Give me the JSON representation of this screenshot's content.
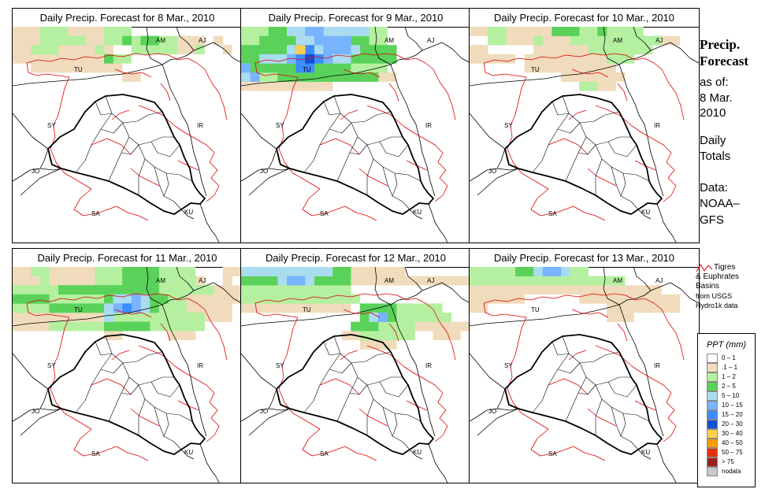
{
  "panels": [
    {
      "title": "Daily Precip. Forecast for  8 Mar., 2010",
      "key": "d8"
    },
    {
      "title": "Daily Precip. Forecast for  9 Mar., 2010",
      "key": "d9"
    },
    {
      "title": "Daily Precip. Forecast for  10 Mar., 2010",
      "key": "d10"
    },
    {
      "title": "Daily Precip. Forecast for  11 Mar., 2010",
      "key": "d11"
    },
    {
      "title": "Daily Precip. Forecast for  12 Mar., 2010",
      "key": "d12"
    },
    {
      "title": "Daily Precip. Forecast for  13 Mar., 2010",
      "key": "d13"
    }
  ],
  "map_labels": {
    "armenia": "AM",
    "azerbaijan": "AJ",
    "turkey": "TU",
    "syria": "SY",
    "iran": "IR",
    "jordan": "JO",
    "saudi": "SA",
    "kuwait": "KU"
  },
  "side": {
    "title_line1": "Precip.",
    "title_line2": "Forecast",
    "asof": "as of:",
    "date1": "8 Mar.",
    "date2": "2010",
    "daily1": "Daily",
    "daily2": "Totals",
    "data1": "Data:",
    "data2": "NOAA–",
    "data3": "GFS"
  },
  "basin_legend": {
    "line1": "Tigres",
    "line2": "& Euphrates",
    "line3": "Basins",
    "line4": "from USGS",
    "line5": "Hydro1k data",
    "line_color": "#e00000"
  },
  "ppt_legend": {
    "title": "PPT (mm)",
    "items": [
      {
        "label": "0 – 1",
        "color": "#ffffff"
      },
      {
        "label": ".1 – 1",
        "color": "#f0dcbc"
      },
      {
        "label": "1 – 2",
        "color": "#b4f0a0"
      },
      {
        "label": "2 – 5",
        "color": "#5ad25a"
      },
      {
        "label": "5 – 10",
        "color": "#aadcf0"
      },
      {
        "label": "10 – 15",
        "color": "#78b4ff"
      },
      {
        "label": "15 – 20",
        "color": "#3c8cff"
      },
      {
        "label": "20 – 30",
        "color": "#1450d2"
      },
      {
        "label": "30 – 40",
        "color": "#ffd050"
      },
      {
        "label": "40 – 50",
        "color": "#ff9a00"
      },
      {
        "label": "50 – 75",
        "color": "#e63200"
      },
      {
        "label": "> 75",
        "color": "#9a1e1e"
      },
      {
        "label": "nodata",
        "color": "#c8c8c8"
      }
    ]
  },
  "precip": {
    "d8": [
      [
        ".1-1",
        "0,0;1,0;2,0;6,0;7,0;8,0;9,0;0,1;1,1;2,1;8,1;9,1;0,2;1,2;5,2;6,2;7,2;8,2;10,2;0,3;1,3;2,3;3,3;4,3;5,3;6,3;7,3;8,3;9,3;2,4;3,4;4,4;5,4;6,4;7,4;8,4;9,4;10,4;11,4;18,1;19,1;20,1;18,2;19,2;22,1;23,2;12,5;13,5"
      ],
      [
        "1-2",
        "3,0;4,0;5,0;10,0;11,0;12,0;3,1;4,1;5,1;6,1;7,1;10,1;11,1;2,2;3,2;4,2;9,2;13,1;13,2;14,2;15,2;16,2;17,2;11,3;12,3;16,1;17,1;20,2"
      ],
      [
        "2-5",
        "12,1;14,1;15,1;10,3"
      ]
    ],
    "d9": [
      [
        ".1-1",
        "0,6;1,6;2,6;3,6;4,6;5,6;6,6;7,6;8,6;9,6;15,5;16,5"
      ],
      [
        "1-2",
        "0,0;1,0;2,0;0,1;1,1;0,5;1,5;2,5;3,5;12,4;13,4;14,4;15,4;14,0;15,0;14,1;15,1"
      ],
      [
        "2-5",
        "3,0;4,0;2,1;3,1;4,1;5,1;0,2;1,2;2,2;3,2;4,2;0,3;1,3;0,4;1,4;2,4;3,4;4,4;5,4;6,4;7,4;8,4;9,4;10,4;11,4;4,5;5,5;6,5;7,5;8,5;9,5;10,5;11,5;12,5;13,5;14,5;12,3;13,3;14,3;15,3;16,3;13,2;14,2;15,2;16,2;12,1;13,1"
      ],
      [
        "5-10",
        "5,0;6,0;6,1;7,1;5,2;8,2;12,2;2,3;3,3;4,3;10,3;11,3;0,5;9,0;10,0;11,0;12,0;13,0"
      ],
      [
        "10-15",
        "7,0;8,0;8,1;9,1;10,1;11,1;9,2;10,2;11,2;5,3;9,3;0,4;1,5"
      ],
      [
        "15-20",
        "7,2;6,3;8,3;6,4;7,4"
      ],
      [
        "20-30",
        "6,2;7,3"
      ],
      [
        "30-40",
        "6,2"
      ]
    ],
    "d10": [
      [
        ".1-1",
        "0,0;1,0;4,0;5,0;6,0;7,0;8,0;4,1;5,1;6,1;8,1;9,1;10,1;0,2;1,2;7,2;8,2;9,2;10,2;11,2;12,2;0,3;1,3;2,3;3,3;4,3;6,3;7,3;8,3;9,3;10,3;11,3;12,3;13,3;14,3;6,4;7,4;8,4;9,4;10,4;11,4;12,4;13,4;14,4;15,4;10,5;11,5;12,5;13,5;14,5;15,5;16,5;21,1;22,1;14,6;15,6"
      ],
      [
        "1-2",
        "2,0;3,0;12,0;13,0;15,0;16,0;17,0;18,0;2,1;3,1;7,1;11,1;12,1;13,1;14,1;15,1;16,1;17,1;18,1;19,1;20,1;13,2;14,2;15,2;16,2;17,2;18,2;19,2;15,3;16,3;17,3;12,6;13,6"
      ],
      [
        "2-5",
        "9,0;10,0;11,0;14,0"
      ]
    ],
    "d11": [
      [
        ".1-1",
        "0,0;1,0;4,0;5,0;6,0;7,0;8,0;23,0;24,0;0,1;1,1;2,1;4,1;5,1;6,1;7,1;8,1;20,1;23,1;22,2;23,2;24,2;0,5;1,5;2,5;3,5;4,5;5,5;6,5;7,5;8,5;9,5;19,3;20,3;21,3;22,3;23,3;24,3;19,4;20,4;21,4;22,4;23,4;0,6;1,6;2,6;3,6;17,7;18,7;19,7;21,5;22,5;23,5;10,7;11,7"
      ],
      [
        "1-2",
        "2,0;3,0;9,0;10,0;11,0;16,0;17,0;18,0;19,0;3,1;9,1;10,1;11,1;16,1;17,1;18,1;19,1;0,2;1,2;2,2;3,2;4,2;16,2;17,2;18,2;19,2;20,2;21,2;4,3;5,3;6,3;7,3;8,3;9,3;17,3;18,3;0,4;1,4;2,4;3,4;16,4;17,4;18,4;10,5;11,5;12,5;13,5;14,5;15,5;16,5;17,5;18,5;19,5;20,5;4,6;5,6;6,6;7,6;8,6;9,6;15,6;16,6;17,6;18,6;19,6;20,6"
      ],
      [
        "2-5",
        "12,0;13,0;14,0;15,0;12,1;13,1;14,1;15,1;5,2;6,2;7,2;8,2;9,2;10,2;11,2;12,2;13,2;14,2;15,2;0,3;1,3;2,3;3,3;10,3;15,3;16,3;4,4;5,4;6,4;7,4;8,4;9,4;15,4;10,6;11,6;12,6;13,6;14,6"
      ],
      [
        "5-10",
        "11,3;12,3;14,3;10,4;14,4;10,5"
      ],
      [
        "10-15",
        "13,3;11,4;12,4;13,4"
      ],
      [
        "15-20",
        "12,4"
      ]
    ],
    "d12": [
      [
        ".1-1",
        "12,0;13,0;14,0;15,0;16,0;17,0;12,1;13,1;14,1;15,1;16,1;17,1;18,1;19,1;20,1;21,1;22,1;23,1;24,1;0,4;1,4;2,4;3,4;4,4;5,4;6,4;7,4;8,4;9,4;10,4;11,4;19,6;20,6;21,6;22,6;23,6;24,6;21,7;22,7;23,7;13,8;14,8;15,8;16,8;11,7;12,7"
      ],
      [
        "1-2",
        "0,2;1,2;2,2;3,2;4,2;5,2;6,2;7,2;8,2;9,2;10,2;11,2;0,3;1,3;2,3;3,3;4,3;5,3;6,3;7,3;8,3;9,3;10,3;11,3;12,3;17,4;18,4;19,4;20,4;21,4;17,5;18,5;19,5;20,5;21,5;22,5;15,6;16,6;17,6;18,6;13,7;14,7;15,7;16,7;17,7;18,7"
      ],
      [
        "2-5",
        "0,1;1,1;2,1;3,1;8,1;9,1;10,1;11,1;10,0;11,0;13,4;14,4;15,4;16,4;13,5;16,5;12,6;13,6;14,6"
      ],
      [
        "5-10",
        "0,0;1,0;2,0;3,0;4,0;5,0;6,0;7,0;8,0;9,0;4,1;7,1;14,5"
      ],
      [
        "10-15",
        "5,1;6,1;15,5"
      ]
    ],
    "d13": [
      [
        ".1-1",
        "0,2;1,2;2,2;3,2;4,2;5,2;6,2;7,2;8,2;9,2;10,2;11,2;12,2;13,2;14,2;15,2;16,2;17,2;18,2;19,2;20,2;0,3;1,3;2,3;3,3;4,3;5,3;12,3;13,3;14,3;15,3;16,3;17,3;18,3;19,3;20,3;21,3;22,3;15,4;16,4;17,4;18,4;19,4;20,4;21,4;22,4;0,4;1,4;15,5;16,5;17,5"
      ],
      [
        "1-2",
        "0,0;1,0;2,0;3,0;4,0;11,0;12,0;0,1;1,1;2,1;3,1;4,1;5,1;6,1;7,1;8,1;9,1;10,1;11,1;12,1;13,1;14,1;15,1;16,1"
      ],
      [
        "2-5",
        "5,0;6,0"
      ],
      [
        "5-10",
        "7,0;8,0;9,0;10,0"
      ],
      [
        "10-15",
        "8,0;9,0"
      ]
    ]
  }
}
